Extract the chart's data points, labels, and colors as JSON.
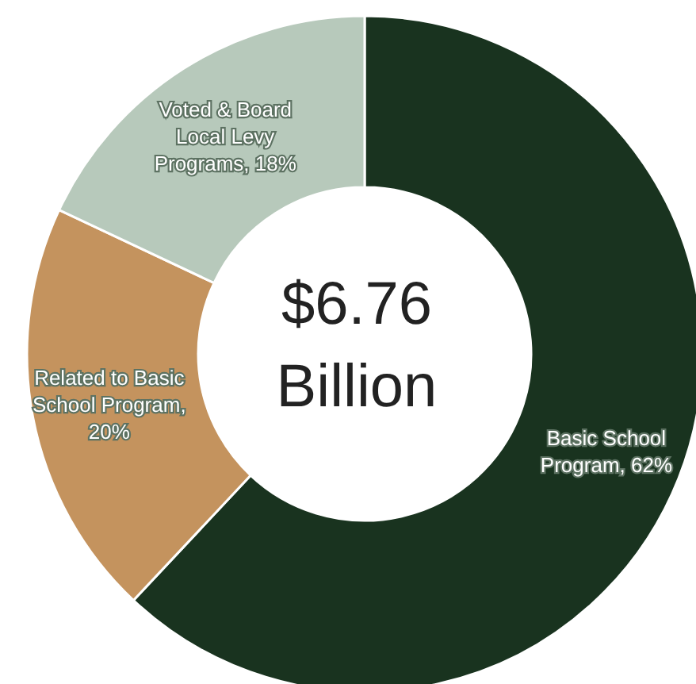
{
  "chart_data": {
    "type": "donut",
    "title": "$6.76 Billion",
    "categories": [
      "Basic School Program",
      "Related to Basic School Program",
      "Voted & Board Local Levy Programs"
    ],
    "values": [
      62,
      20,
      18
    ],
    "colors": [
      "#19331f",
      "#c4935e",
      "#b7c9bb"
    ],
    "value_labels": [
      ", 62%",
      ", 20%",
      ", 18%"
    ],
    "legend": false
  }
}
